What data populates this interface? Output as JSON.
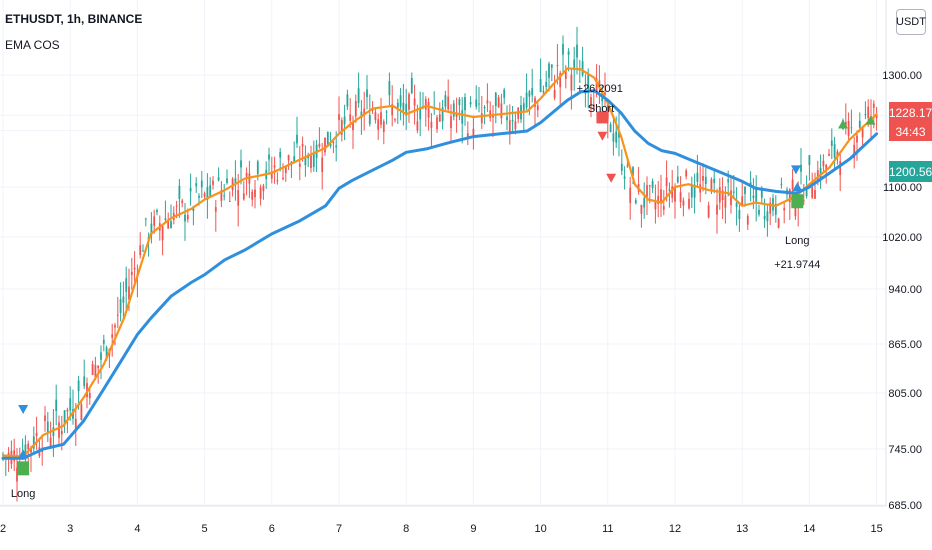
{
  "header": {
    "symbol_line": "ETHUSDT, 1h, BINANCE",
    "indicator": "EMA COS"
  },
  "currency_button": "USDT",
  "price_tags": {
    "last_price": {
      "value": "1228.17",
      "color": "#ef5350"
    },
    "countdown": {
      "value": "34:43",
      "color": "#ef5350"
    },
    "ema_slow": {
      "value": "1200.56",
      "color": "#26a69a"
    }
  },
  "chart_data": {
    "type": "line",
    "y_axis_ticks": [
      1300,
      1228.17,
      1200.56,
      1100,
      1020,
      940,
      865,
      805,
      745,
      685
    ],
    "y_axis_labels": [
      "1300.00",
      "1100.00",
      "1020.00",
      "940.00",
      "865.00",
      "805.00",
      "745.00",
      "685.00"
    ],
    "x_axis_labels": [
      "2",
      "3",
      "4",
      "5",
      "6",
      "7",
      "8",
      "9",
      "10",
      "11",
      "12",
      "13",
      "14",
      "15"
    ],
    "series": [
      {
        "color": "#f7931a",
        "x": [
          2.0,
          2.3,
          2.6,
          2.9,
          3.2,
          3.5,
          3.8,
          4.0,
          4.2,
          4.5,
          4.8,
          5.0,
          5.3,
          5.6,
          6.0,
          6.4,
          6.8,
          7.0,
          7.2,
          7.5,
          7.8,
          8.0,
          8.3,
          8.6,
          9.0,
          9.4,
          9.8,
          10.0,
          10.2,
          10.4,
          10.6,
          10.8,
          11.0,
          11.2,
          11.4,
          11.6,
          11.8,
          12.0,
          12.2,
          12.5,
          12.8,
          13.0,
          13.2,
          13.5,
          13.8,
          14.0,
          14.3,
          14.6,
          15.0
        ],
        "values": [
          738,
          737,
          760,
          770,
          800,
          840,
          900,
          960,
          1025,
          1050,
          1065,
          1080,
          1095,
          1115,
          1125,
          1148,
          1170,
          1195,
          1215,
          1240,
          1245,
          1230,
          1245,
          1235,
          1225,
          1230,
          1235,
          1258,
          1285,
          1312,
          1310,
          1295,
          1250,
          1190,
          1105,
          1080,
          1075,
          1100,
          1105,
          1095,
          1090,
          1070,
          1075,
          1070,
          1085,
          1105,
          1135,
          1185,
          1230
        ]
      },
      {
        "color": "#2f8fdd",
        "x": [
          2.0,
          2.3,
          2.6,
          2.9,
          3.2,
          3.5,
          3.8,
          4.0,
          4.2,
          4.5,
          4.8,
          5.0,
          5.3,
          5.6,
          6.0,
          6.4,
          6.8,
          7.0,
          7.2,
          7.5,
          7.8,
          8.0,
          8.3,
          8.6,
          9.0,
          9.4,
          9.8,
          10.0,
          10.2,
          10.4,
          10.6,
          10.8,
          11.0,
          11.2,
          11.4,
          11.6,
          11.8,
          12.0,
          12.2,
          12.5,
          12.8,
          13.0,
          13.2,
          13.5,
          13.8,
          14.0,
          14.3,
          14.6,
          15.0
        ],
        "values": [
          735,
          735,
          745,
          750,
          775,
          810,
          850,
          878,
          900,
          930,
          950,
          962,
          985,
          1000,
          1025,
          1045,
          1070,
          1098,
          1112,
          1130,
          1148,
          1162,
          1168,
          1178,
          1190,
          1195,
          1200,
          1215,
          1235,
          1255,
          1270,
          1272,
          1255,
          1232,
          1200,
          1178,
          1165,
          1160,
          1150,
          1135,
          1120,
          1110,
          1098,
          1093,
          1090,
          1100,
          1125,
          1150,
          1195
        ]
      }
    ],
    "annotations": [
      {
        "text": "Long",
        "x": 2.3,
        "y": 735
      },
      {
        "text": "Short",
        "x": 10.9,
        "y": 1270
      },
      {
        "text": "+26.2091",
        "x": 10.85,
        "y": 1305
      },
      {
        "text": "Long",
        "x": 13.8,
        "y": 1090
      },
      {
        "text": "+21.9744",
        "x": 13.8,
        "y": 1090
      }
    ],
    "candle_up_color": "#26a69a",
    "candle_down_color": "#ef5350",
    "grid": true
  }
}
